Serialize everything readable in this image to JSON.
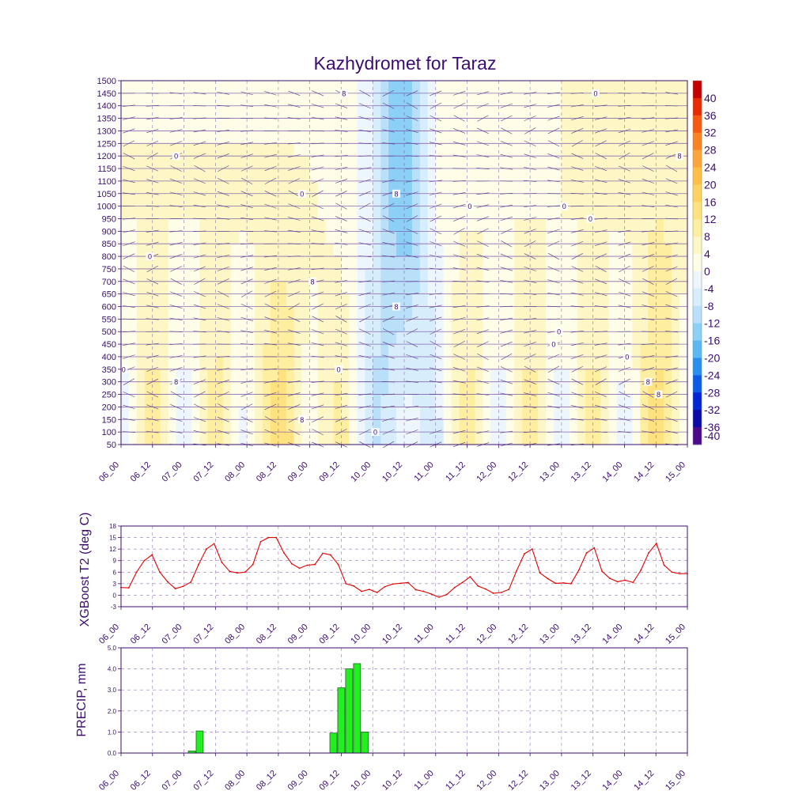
{
  "chart_data": [
    {
      "type": "heatmap",
      "name": "cross-section",
      "title": "Kazhydromet for Taraz",
      "xlabel": "",
      "ylabel": "",
      "x_ticks": [
        "06_00",
        "06_12",
        "07_00",
        "07_12",
        "08_00",
        "08_12",
        "09_00",
        "09_12",
        "10_00",
        "10_12",
        "11_00",
        "11_12",
        "12_00",
        "12_12",
        "13_00",
        "13_12",
        "14_00",
        "14_12",
        "15_00"
      ],
      "y_ticks": [
        1500,
        1450,
        1400,
        1350,
        1300,
        1250,
        1200,
        1150,
        1100,
        1050,
        1000,
        950,
        900,
        850,
        800,
        750,
        700,
        650,
        600,
        550,
        500,
        450,
        400,
        350,
        300,
        250,
        200,
        150,
        100,
        50
      ],
      "ylim": [
        50,
        1500
      ],
      "colorbar": {
        "labels": [
          40,
          36,
          32,
          28,
          24,
          20,
          16,
          12,
          8,
          4,
          0,
          -4,
          -8,
          -12,
          -16,
          -20,
          -24,
          -28,
          -32,
          -36,
          -40
        ],
        "colors": [
          "#c40000",
          "#e82a00",
          "#f55a10",
          "#f98322",
          "#fca53a",
          "#fdbf45",
          "#fdd25e",
          "#fde27f",
          "#fdef9f",
          "#fdf7c6",
          "#fefde8",
          "#eef6fd",
          "#d8edfb",
          "#b9e0f8",
          "#8dd0f6",
          "#5bb8f2",
          "#2a8ef0",
          "#0d5ae8",
          "#0026d6",
          "#0a0aa8",
          "#4a0a8a"
        ]
      },
      "contour_labels": [
        {
          "value": "0",
          "x_label": "06_00",
          "y_value": 350
        },
        {
          "value": "0",
          "x_label": "06_12",
          "y_value": 800
        },
        {
          "value": "0",
          "x_label": "07_00",
          "y_value": 1200
        },
        {
          "value": "8",
          "x_label": "07_00",
          "y_value": 300
        },
        {
          "value": "8",
          "x_label": "09_00",
          "y_value": 700
        },
        {
          "value": "0",
          "x_label": "09_00",
          "y_value": 1050
        },
        {
          "value": "0",
          "x_label": "09_12",
          "y_value": 350
        },
        {
          "value": "8",
          "x_label": "09_12",
          "y_value": 1450
        },
        {
          "value": "8",
          "x_label": "09_00",
          "y_value": 150
        },
        {
          "value": "0",
          "x_label": "10_00",
          "y_value": 100
        },
        {
          "value": "8",
          "x_label": "10_12",
          "y_value": 1050
        },
        {
          "value": "8",
          "x_label": "10_12",
          "y_value": 600
        },
        {
          "value": "0",
          "x_label": "11_12",
          "y_value": 1000
        },
        {
          "value": "0",
          "x_label": "13_00",
          "y_value": 1000
        },
        {
          "value": "0",
          "x_label": "13_00",
          "y_value": 500
        },
        {
          "value": "0",
          "x_label": "13_12",
          "y_value": 1450
        },
        {
          "value": "0",
          "x_label": "13_12",
          "y_value": 950
        },
        {
          "value": "0",
          "x_label": "13_00",
          "y_value": 450
        },
        {
          "value": "0",
          "x_label": "14_00",
          "y_value": 400
        },
        {
          "value": "8",
          "x_label": "14_12",
          "y_value": 250
        },
        {
          "value": "8",
          "x_label": "14_12",
          "y_value": 300
        },
        {
          "value": "8",
          "x_label": "15_00",
          "y_value": 1200
        }
      ]
    },
    {
      "type": "line",
      "name": "temperature",
      "title": "",
      "xlabel": "",
      "ylabel": "XGBoost T2 (deg C)",
      "x_ticks": [
        "06_00",
        "06_12",
        "07_00",
        "07_12",
        "08_00",
        "08_12",
        "09_00",
        "09_12",
        "10_00",
        "10_12",
        "11_00",
        "11_12",
        "12_00",
        "12_12",
        "13_00",
        "13_12",
        "14_00",
        "14_12",
        "15_00"
      ],
      "y_ticks": [
        18,
        15,
        12,
        9,
        6,
        3,
        0,
        -3
      ],
      "ylim": [
        -3,
        18
      ],
      "series": [
        {
          "name": "T2",
          "color": "#e00000",
          "values": [
            2,
            1.9,
            6,
            9,
            10.5,
            6,
            3.5,
            1.7,
            2.3,
            3.4,
            8,
            12,
            13.4,
            8.5,
            6.2,
            5.8,
            6,
            8,
            13.9,
            15,
            15,
            11,
            8.2,
            7,
            7.8,
            8,
            10.9,
            10.5,
            8,
            3,
            2.4,
            1,
            1.5,
            0.7,
            2.2,
            2.9,
            3.1,
            3.3,
            1.4,
            1,
            0.3,
            -0.5,
            0.2,
            2,
            3.3,
            4.8,
            2.4,
            1.6,
            0.5,
            0.7,
            1.5,
            6.4,
            10.8,
            12,
            5.8,
            4.3,
            3.1,
            3.2,
            3,
            6.5,
            11,
            12.3,
            6.2,
            4.4,
            3.5,
            3.9,
            3.3,
            6.5,
            11,
            13.5,
            7.8,
            6,
            5.6,
            5.6
          ]
        }
      ]
    },
    {
      "type": "bar",
      "name": "precipitation",
      "title": "",
      "xlabel": "",
      "ylabel": "PRECIP, mm",
      "x_ticks": [
        "06_00",
        "06_12",
        "07_00",
        "07_12",
        "08_00",
        "08_12",
        "09_00",
        "09_12",
        "10_00",
        "10_12",
        "11_00",
        "11_12",
        "12_00",
        "12_12",
        "13_00",
        "13_12",
        "14_00",
        "14_12",
        "15_00"
      ],
      "y_ticks": [
        "5.0",
        "4.0",
        "3.0",
        "2.0",
        "1.0",
        "0.0"
      ],
      "ylim": [
        0,
        5
      ],
      "color": "#22ee22",
      "bars": [
        {
          "hour": 27,
          "value": 0.1
        },
        {
          "hour": 30,
          "value": 1.05
        },
        {
          "hour": 81,
          "value": 0.95
        },
        {
          "hour": 84,
          "value": 3.1
        },
        {
          "hour": 87,
          "value": 4.0
        },
        {
          "hour": 90,
          "value": 4.25
        },
        {
          "hour": 93,
          "value": 1.0
        }
      ]
    }
  ]
}
